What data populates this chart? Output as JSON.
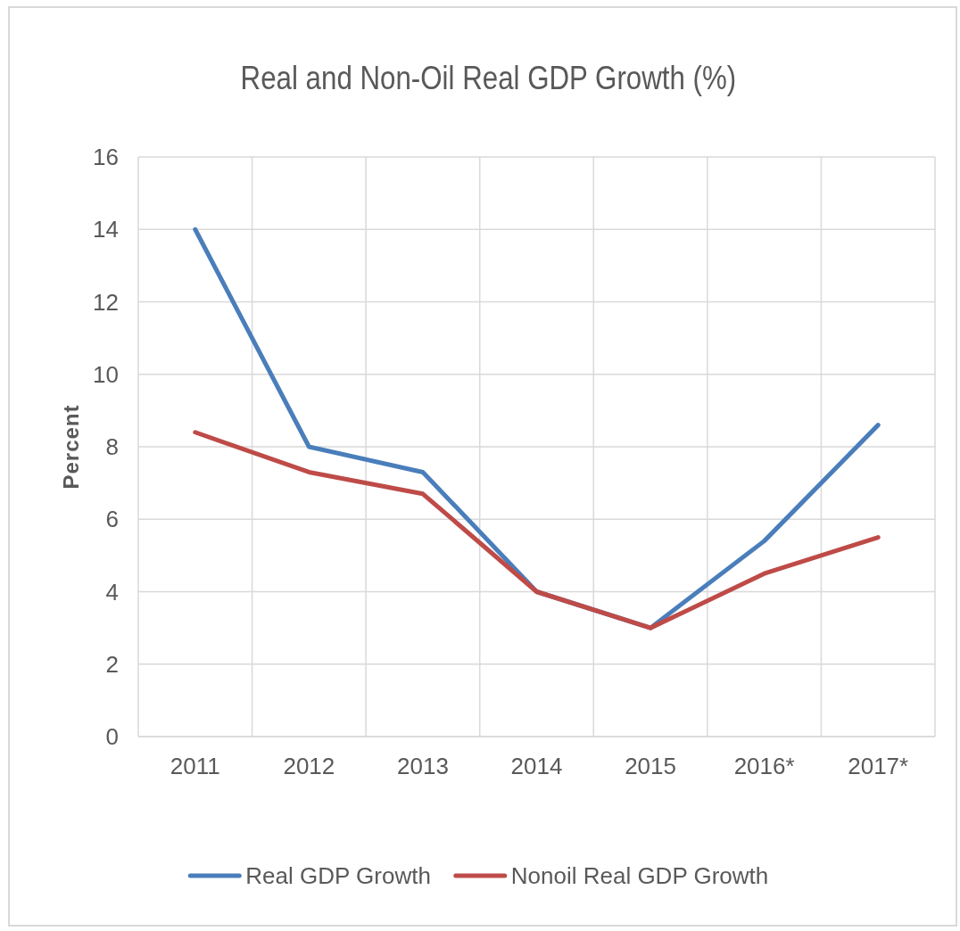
{
  "chart_data": {
    "type": "line",
    "title": "Real and Non-Oil Real GDP Growth (%)",
    "ylabel": "Percent",
    "categories": [
      "2011",
      "2012",
      "2013",
      "2014",
      "2015",
      "2016*",
      "2017*"
    ],
    "series": [
      {
        "name": "Real GDP Growth",
        "color": "#4a7ebb",
        "values": [
          14.0,
          8.0,
          7.3,
          4.0,
          3.0,
          5.4,
          8.6
        ]
      },
      {
        "name": "Nonoil Real GDP Growth",
        "color": "#be4b48",
        "values": [
          8.4,
          7.3,
          6.7,
          4.0,
          3.0,
          4.5,
          5.5
        ]
      }
    ],
    "ylim": [
      0,
      16
    ],
    "yticks": [
      0,
      2,
      4,
      6,
      8,
      10,
      12,
      14,
      16
    ],
    "grid": true,
    "legend": "bottom",
    "marker": "none",
    "line_style": "solid"
  }
}
